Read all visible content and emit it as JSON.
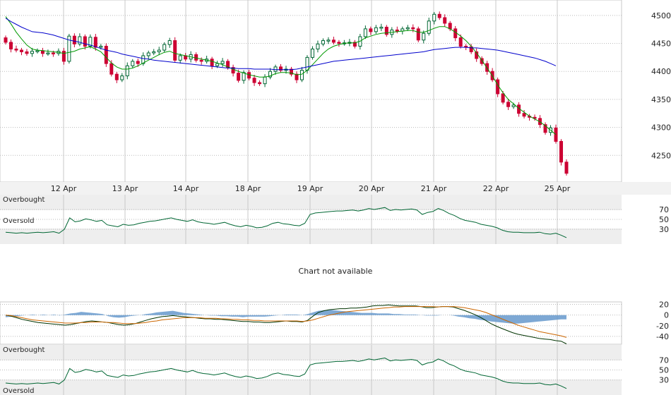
{
  "chart_data": [
    {
      "type": "candlestick",
      "panel": "price",
      "x_labels": [
        "12 Apr",
        "13 Apr",
        "14 Apr",
        "18 Apr",
        "19 Apr",
        "20 Apr",
        "21 Apr",
        "22 Apr",
        "25 Apr"
      ],
      "y_ticks": [
        4250,
        4300,
        4350,
        4400,
        4450,
        4500
      ],
      "ylim": [
        4205,
        4525
      ],
      "grid": true,
      "series": [
        {
          "kind": "candles",
          "color_up": "#ffffff",
          "color_down": "#cc0033",
          "closes": [
            4452,
            4440,
            4438,
            4435,
            4432,
            4436,
            4437,
            4432,
            4433,
            4432,
            4436,
            4418,
            4463,
            4449,
            4462,
            4445,
            4461,
            4443,
            4445,
            4414,
            4395,
            4385,
            4392,
            4410,
            4418,
            4414,
            4428,
            4433,
            4435,
            4438,
            4448,
            4455,
            4420,
            4428,
            4422,
            4430,
            4420,
            4418,
            4422,
            4410,
            4414,
            4418,
            4407,
            4397,
            4384,
            4398,
            4388,
            4380,
            4378,
            4390,
            4400,
            4408,
            4402,
            4404,
            4395,
            4385,
            4402,
            4425,
            4440,
            4449,
            4455,
            4456,
            4452,
            4450,
            4451,
            4452,
            4445,
            4462,
            4476,
            4471,
            4478,
            4479,
            4466,
            4474,
            4472,
            4476,
            4478,
            4476,
            4456,
            4468,
            4490,
            4502,
            4496,
            4486,
            4476,
            4460,
            4445,
            4444,
            4435,
            4423,
            4414,
            4400,
            4385,
            4360,
            4345,
            4337,
            4340,
            4325,
            4320,
            4318,
            4316,
            4305,
            4291,
            4299,
            4275,
            4238,
            4218
          ]
        },
        {
          "kind": "moving-average-short",
          "color": "#009900",
          "values": [
            4498,
            4485,
            4470,
            4458,
            4447,
            4440,
            4438,
            4437,
            4436,
            4435,
            4434,
            4432,
            4434,
            4436,
            4440,
            4442,
            4444,
            4440,
            4435,
            4425,
            4415,
            4408,
            4404,
            4404,
            4406,
            4410,
            4415,
            4420,
            4425,
            4430,
            4434,
            4436,
            4432,
            4430,
            4428,
            4426,
            4424,
            4422,
            4420,
            4418,
            4415,
            4412,
            4408,
            4404,
            4400,
            4397,
            4394,
            4392,
            4390,
            4390,
            4392,
            4396,
            4398,
            4398,
            4397,
            4394,
            4395,
            4402,
            4412,
            4422,
            4432,
            4440,
            4445,
            4448,
            4450,
            4451,
            4451,
            4454,
            4460,
            4463,
            4466,
            4468,
            4469,
            4470,
            4471,
            4472,
            4473,
            4473,
            4470,
            4470,
            4473,
            4477,
            4480,
            4480,
            4476,
            4470,
            4463,
            4455,
            4445,
            4433,
            4420,
            4406,
            4392,
            4376,
            4362,
            4350,
            4342,
            4334,
            4327,
            4320,
            4315,
            4310,
            4303,
            4295,
            4287
          ]
        },
        {
          "kind": "moving-average-long",
          "color": "#0000cc",
          "values": [
            4495,
            4489,
            4484,
            4479,
            4475,
            4471,
            4470,
            4469,
            4467,
            4465,
            4462,
            4459,
            4456,
            4454,
            4452,
            4449,
            4447,
            4444,
            4441,
            4438,
            4436,
            4434,
            4431,
            4429,
            4427,
            4425,
            4423,
            4422,
            4420,
            4419,
            4418,
            4417,
            4416,
            4415,
            4414,
            4413,
            4412,
            4411,
            4410,
            4409,
            4408,
            4407,
            4406,
            4406,
            4405,
            4405,
            4405,
            4404,
            4404,
            4404,
            4404,
            4403,
            4403,
            4403,
            4403,
            4404,
            4406,
            4408,
            4410,
            4412,
            4414,
            4416,
            4418,
            4419,
            4420,
            4421,
            4422,
            4423,
            4424,
            4425,
            4426,
            4427,
            4428,
            4429,
            4430,
            4431,
            4432,
            4433,
            4434,
            4435,
            4437,
            4439,
            4440,
            4441,
            4442,
            4443,
            4443,
            4443,
            4442,
            4442,
            4441,
            4440,
            4439,
            4438,
            4436,
            4434,
            4432,
            4430,
            4428,
            4426,
            4424,
            4421,
            4418,
            4414,
            4410
          ]
        }
      ]
    },
    {
      "type": "line",
      "panel": "oscillator-1",
      "labels": {
        "top": "Overbought",
        "bottom": "Oversold"
      },
      "y_ticks": [
        30,
        50,
        70
      ],
      "ylim": [
        0,
        100
      ],
      "series": [
        {
          "color": "#006633",
          "values": [
            24,
            23,
            22,
            23,
            22,
            23,
            24,
            23,
            24,
            25,
            22,
            30,
            53,
            45,
            47,
            51,
            49,
            46,
            48,
            39,
            37,
            35,
            40,
            38,
            39,
            42,
            44,
            46,
            47,
            49,
            51,
            53,
            50,
            48,
            46,
            49,
            45,
            43,
            42,
            40,
            42,
            44,
            40,
            37,
            35,
            38,
            36,
            33,
            34,
            37,
            42,
            44,
            41,
            40,
            38,
            37,
            42,
            60,
            63,
            64,
            65,
            66,
            67,
            67,
            68,
            69,
            67,
            69,
            72,
            70,
            72,
            74,
            68,
            70,
            69,
            70,
            71,
            69,
            60,
            64,
            66,
            72,
            68,
            62,
            58,
            52,
            48,
            46,
            44,
            40,
            38,
            36,
            33,
            28,
            25,
            24,
            24,
            23,
            23,
            23,
            24,
            21,
            20,
            22,
            18,
            13
          ]
        }
      ]
    },
    {
      "type": "line",
      "panel": "oscillator-2",
      "y_ticks": [
        20,
        0,
        -20,
        -40
      ],
      "ylim": [
        -60,
        30
      ],
      "series": [
        {
          "kind": "histogram",
          "color": "#6699cc",
          "values": [
            -4,
            -3,
            -2,
            -1,
            0,
            1,
            0,
            1,
            0,
            1,
            -1,
            1,
            3,
            4,
            6,
            5,
            4,
            3,
            2,
            -2,
            -4,
            -5,
            -4,
            -2,
            -1,
            0,
            2,
            3,
            5,
            6,
            7,
            8,
            6,
            4,
            3,
            2,
            1,
            0,
            -1,
            -1,
            -2,
            -2,
            -3,
            -3,
            -4,
            -3,
            -3,
            -3,
            -3,
            -2,
            -1,
            0,
            1,
            1,
            1,
            0,
            2,
            5,
            8,
            9,
            10,
            9,
            8,
            7,
            6,
            5,
            4,
            4,
            4,
            3,
            3,
            3,
            2,
            2,
            1,
            1,
            1,
            0,
            -1,
            -1,
            -1,
            0,
            0,
            -1,
            -3,
            -4,
            -6,
            -7,
            -9,
            -10,
            -12,
            -13,
            -14,
            -15,
            -16,
            -16,
            -15,
            -14,
            -13,
            -12,
            -11,
            -10,
            -9,
            -8,
            -8
          ]
        },
        {
          "kind": "fast-line",
          "color": "#003300",
          "values": [
            0,
            -2,
            -5,
            -8,
            -10,
            -12,
            -14,
            -15,
            -16,
            -17,
            -18,
            -19,
            -18,
            -16,
            -14,
            -12,
            -11,
            -12,
            -13,
            -14,
            -16,
            -18,
            -19,
            -18,
            -16,
            -13,
            -10,
            -7,
            -5,
            -3,
            -2,
            -1,
            -2,
            -3,
            -4,
            -5,
            -6,
            -7,
            -7,
            -8,
            -8,
            -9,
            -10,
            -11,
            -12,
            -12,
            -13,
            -13,
            -14,
            -14,
            -13,
            -12,
            -11,
            -12,
            -12,
            -13,
            -10,
            -2,
            5,
            8,
            10,
            11,
            12,
            12,
            13,
            13,
            14,
            15,
            17,
            18,
            18,
            19,
            18,
            17,
            17,
            17,
            17,
            16,
            14,
            14,
            15,
            16,
            16,
            15,
            12,
            9,
            5,
            1,
            -4,
            -10,
            -16,
            -21,
            -25,
            -29,
            -33,
            -36,
            -38,
            -40,
            -42,
            -44,
            -45,
            -46,
            -48,
            -49,
            -54
          ]
        },
        {
          "kind": "signal-line",
          "color": "#cc6600",
          "values": [
            0,
            -1,
            -3,
            -5,
            -7,
            -9,
            -10,
            -11,
            -12,
            -13,
            -14,
            -15,
            -15,
            -15,
            -14,
            -14,
            -13,
            -13,
            -13,
            -14,
            -14,
            -15,
            -16,
            -16,
            -16,
            -15,
            -14,
            -12,
            -11,
            -9,
            -8,
            -7,
            -6,
            -5,
            -5,
            -5,
            -5,
            -6,
            -6,
            -6,
            -7,
            -7,
            -8,
            -8,
            -9,
            -9,
            -10,
            -10,
            -11,
            -11,
            -11,
            -11,
            -11,
            -11,
            -11,
            -12,
            -11,
            -9,
            -6,
            -3,
            0,
            2,
            4,
            6,
            7,
            8,
            9,
            10,
            11,
            12,
            13,
            14,
            15,
            15,
            16,
            16,
            16,
            16,
            16,
            16,
            15,
            16,
            16,
            16,
            15,
            14,
            12,
            10,
            8,
            5,
            1,
            -3,
            -7,
            -11,
            -15,
            -19,
            -22,
            -25,
            -28,
            -31,
            -33,
            -35,
            -37,
            -39,
            -42
          ]
        }
      ]
    },
    {
      "type": "line",
      "panel": "oscillator-3",
      "labels": {
        "top": "Overbought",
        "bottom": "Oversold"
      },
      "y_ticks": [
        70,
        50,
        30
      ],
      "ylim": [
        0,
        100
      ],
      "series": [
        {
          "color": "#006633",
          "values": [
            24,
            23,
            22,
            23,
            22,
            23,
            24,
            23,
            24,
            25,
            22,
            30,
            53,
            45,
            47,
            51,
            49,
            46,
            48,
            39,
            37,
            35,
            40,
            38,
            39,
            42,
            44,
            46,
            47,
            49,
            51,
            53,
            50,
            48,
            46,
            49,
            45,
            43,
            42,
            40,
            42,
            44,
            40,
            37,
            35,
            38,
            36,
            33,
            34,
            37,
            42,
            44,
            41,
            40,
            38,
            37,
            42,
            60,
            63,
            64,
            65,
            66,
            67,
            67,
            68,
            69,
            67,
            69,
            72,
            70,
            72,
            74,
            68,
            70,
            69,
            70,
            71,
            69,
            60,
            64,
            66,
            72,
            68,
            62,
            58,
            52,
            48,
            46,
            44,
            40,
            38,
            36,
            33,
            28,
            25,
            24,
            24,
            23,
            23,
            23,
            24,
            21,
            20,
            22,
            18,
            13
          ]
        }
      ]
    }
  ],
  "message": "Chart not available"
}
